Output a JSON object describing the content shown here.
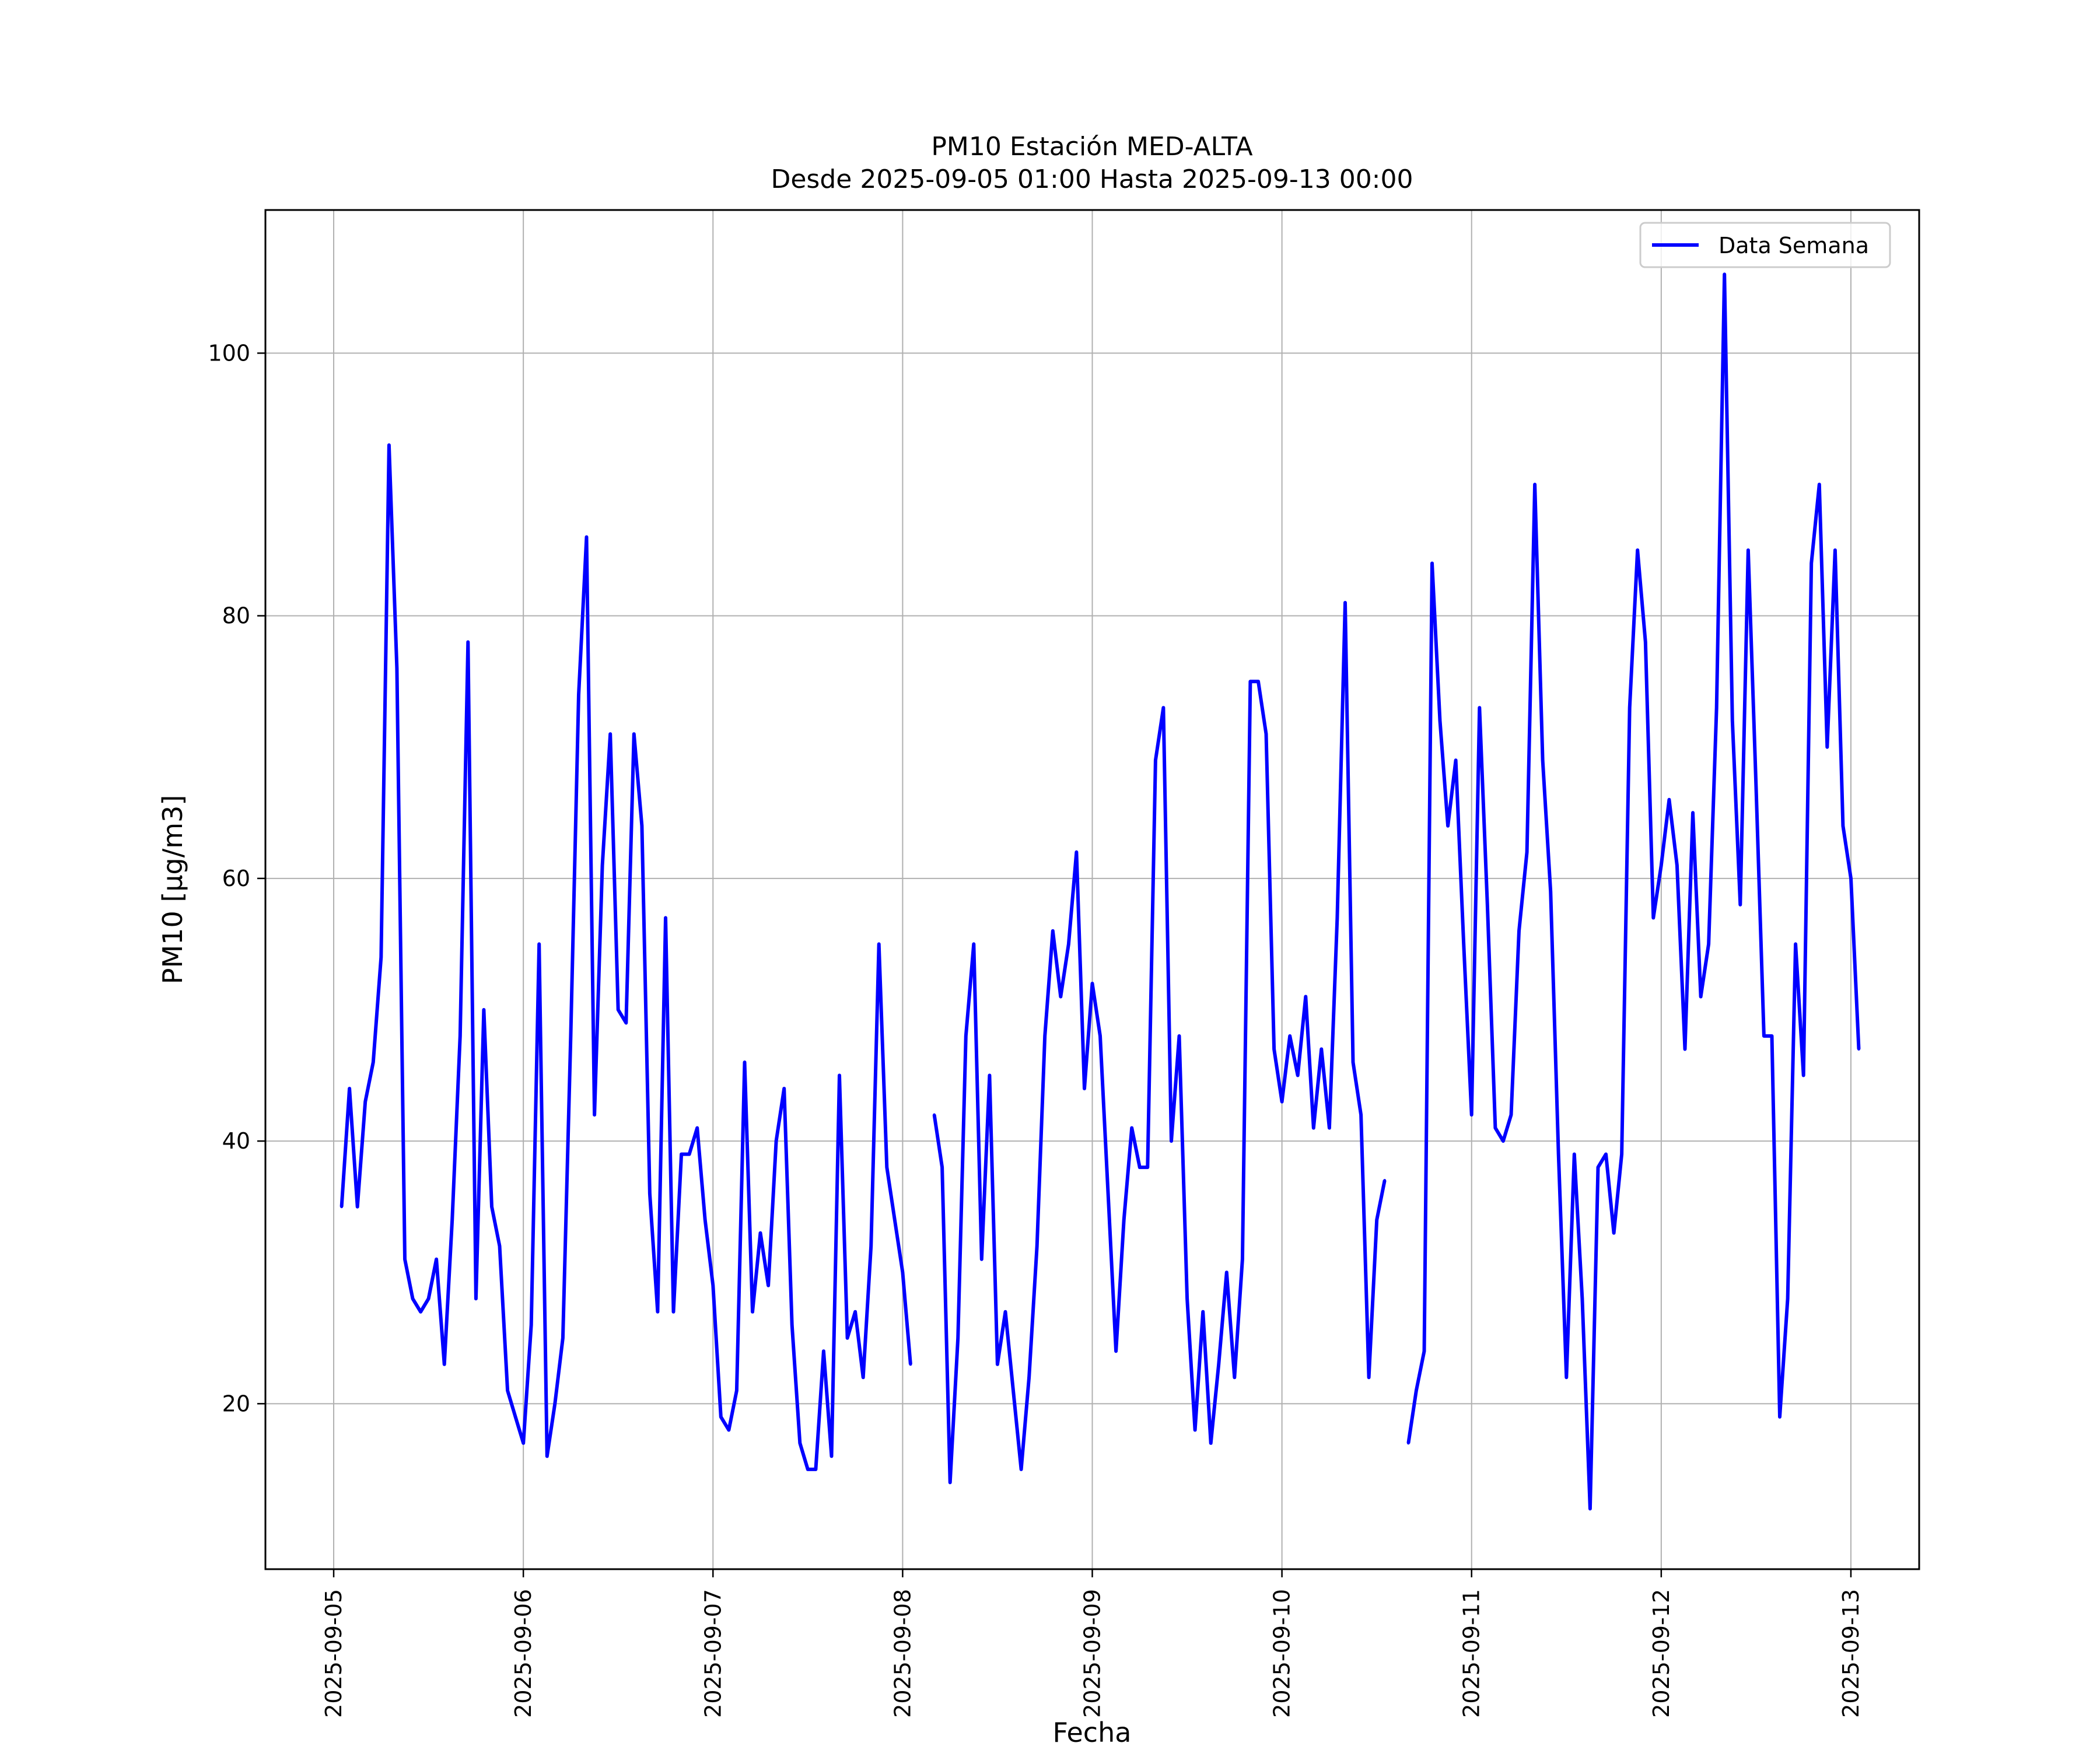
{
  "chart_data": {
    "type": "line",
    "title": "PM10 Estación MED-ALTA",
    "subtitle": "Desde 2025-09-05 01:00 Hasta 2025-09-13 00:00",
    "xlabel": "Fecha",
    "ylabel": "PM10 [μg/m3]",
    "xlim_days": [
      -0.36,
      8.36
    ],
    "ylim": [
      7.4,
      110.9
    ],
    "x_ticks": [
      {
        "day": 0,
        "label": "2025-09-05"
      },
      {
        "day": 1,
        "label": "2025-09-06"
      },
      {
        "day": 2,
        "label": "2025-09-07"
      },
      {
        "day": 3,
        "label": "2025-09-08"
      },
      {
        "day": 4,
        "label": "2025-09-09"
      },
      {
        "day": 5,
        "label": "2025-09-10"
      },
      {
        "day": 6,
        "label": "2025-09-11"
      },
      {
        "day": 7,
        "label": "2025-09-12"
      },
      {
        "day": 8,
        "label": "2025-09-13"
      }
    ],
    "y_ticks": [
      {
        "value": 20,
        "label": "20"
      },
      {
        "value": 40,
        "label": "40"
      },
      {
        "value": 60,
        "label": "60"
      },
      {
        "value": 80,
        "label": "80"
      },
      {
        "value": 100,
        "label": "100"
      }
    ],
    "grid": true,
    "legend_position": "top-right",
    "series": [
      {
        "name": "Data Semana",
        "color": "#0000ff",
        "start": "2025-09-05 01:00",
        "interval_hours": 1,
        "values": [
          35,
          44,
          35,
          43,
          46,
          54,
          93,
          76,
          31,
          28,
          27,
          28,
          31,
          23,
          34,
          48,
          78,
          28,
          50,
          35,
          32,
          21,
          19,
          17,
          26,
          55,
          16,
          20,
          25,
          48,
          74,
          86,
          42,
          61,
          71,
          50,
          49,
          71,
          64,
          36,
          27,
          57,
          27,
          39,
          39,
          41,
          34,
          29,
          19,
          18,
          21,
          46,
          27,
          33,
          29,
          40,
          44,
          26,
          17,
          15,
          15,
          24,
          16,
          45,
          25,
          27,
          22,
          32,
          55,
          38,
          34,
          30,
          23,
          null,
          null,
          42,
          38,
          14,
          25,
          48,
          55,
          31,
          45,
          23,
          27,
          21,
          15,
          22,
          32,
          48,
          56,
          51,
          55,
          62,
          44,
          52,
          48,
          36,
          24,
          34,
          41,
          38,
          38,
          69,
          73,
          40,
          48,
          28,
          18,
          27,
          17,
          23,
          30,
          22,
          31,
          75,
          75,
          71,
          47,
          43,
          48,
          45,
          51,
          41,
          47,
          41,
          57,
          81,
          46,
          42,
          22,
          34,
          37,
          null,
          null,
          17,
          21,
          24,
          84,
          72,
          64,
          69,
          55,
          42,
          73,
          58,
          41,
          40,
          42,
          56,
          62,
          90,
          69,
          59,
          39,
          22,
          39,
          28,
          12,
          38,
          39,
          33,
          39,
          73,
          85,
          78,
          57,
          61,
          66,
          61,
          47,
          65,
          51,
          55,
          73,
          106,
          72,
          58,
          85,
          67,
          48,
          48,
          19,
          28,
          55,
          45,
          84,
          90,
          70,
          85,
          64,
          60,
          47
        ]
      }
    ]
  }
}
